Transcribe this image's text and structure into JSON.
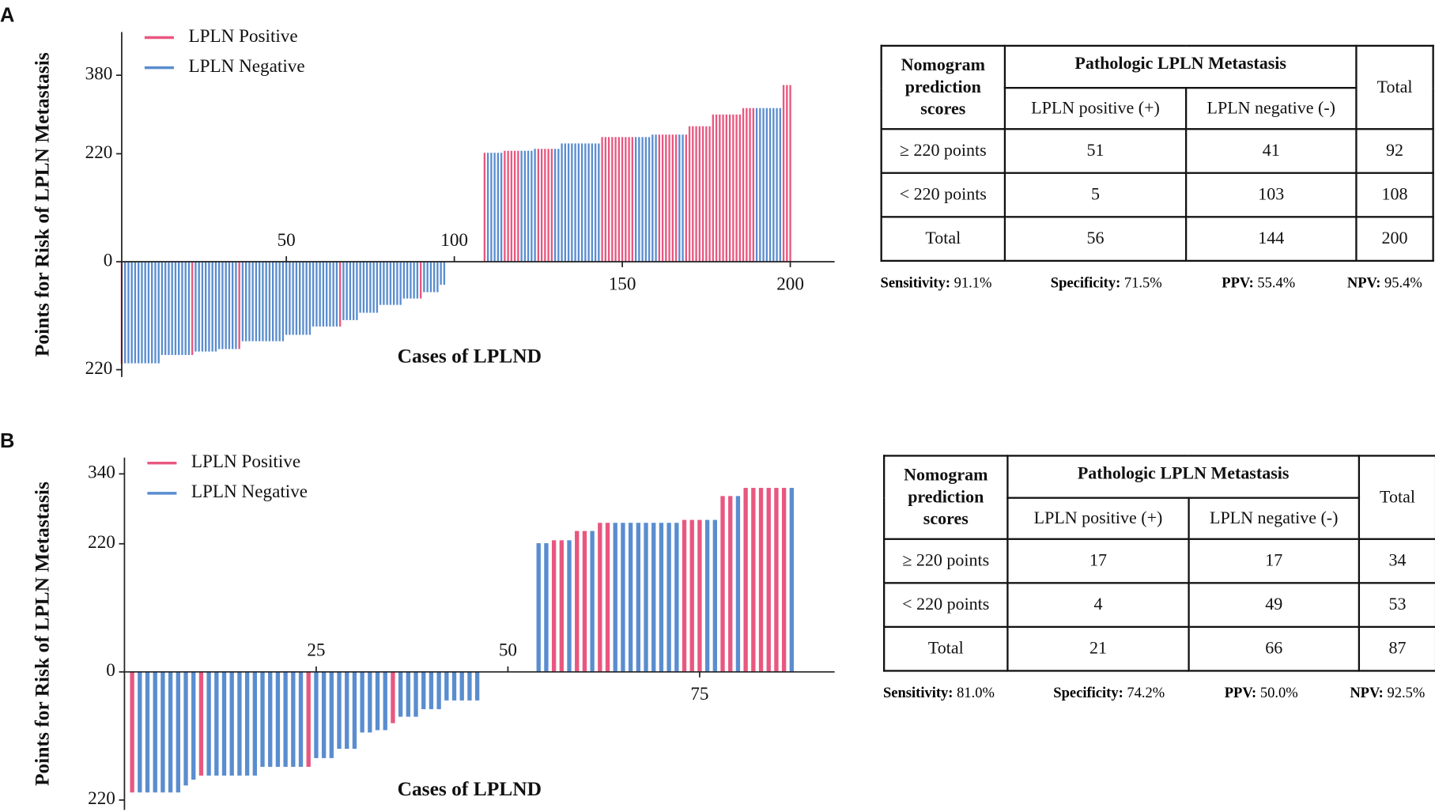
{
  "panel_labels": [
    "A",
    "B"
  ],
  "chart_data": [
    {
      "type": "bar",
      "ylabel": "Points for Risk of LPLN Metastasis",
      "xlabel": "Cases of LPLND",
      "xlim": [
        1,
        213.2
      ],
      "xticks": [
        50,
        100,
        150,
        200
      ],
      "ylim": [
        -235,
        468
      ],
      "yticks": [
        {
          "value": -220,
          "label": "220"
        },
        0,
        220,
        380
      ],
      "series": [
        {
          "name": "LPLN Positive",
          "color": "#e8577f",
          "x": [
            1,
            22,
            36,
            66,
            90,
            109,
            115,
            116,
            117,
            118,
            119,
            125,
            126,
            127,
            128,
            129,
            144,
            145,
            146,
            147,
            148,
            149,
            150,
            151,
            152,
            153,
            161,
            162,
            163,
            164,
            165,
            166,
            169,
            170,
            171,
            172,
            173,
            174,
            175,
            176,
            177,
            178,
            179,
            180,
            181,
            182,
            183,
            184,
            185,
            186,
            187,
            188,
            189,
            198,
            199,
            200
          ],
          "values": [
            -208,
            -190,
            -178,
            -132,
            -75,
            222,
            226,
            226,
            226,
            226,
            226,
            230,
            230,
            230,
            230,
            230,
            254,
            254,
            254,
            254,
            254,
            254,
            254,
            254,
            254,
            254,
            259,
            259,
            259,
            259,
            259,
            259,
            259,
            276,
            276,
            276,
            276,
            276,
            276,
            276,
            300,
            300,
            300,
            300,
            300,
            300,
            300,
            300,
            300,
            313,
            313,
            313,
            313,
            360,
            360,
            360
          ]
        },
        {
          "name": "LPLN Negative",
          "color": "#5a8dcf",
          "x": [
            2,
            3,
            4,
            5,
            6,
            7,
            8,
            9,
            10,
            11,
            12,
            13,
            14,
            15,
            16,
            17,
            18,
            19,
            20,
            21,
            23,
            24,
            25,
            26,
            27,
            28,
            29,
            30,
            31,
            32,
            33,
            34,
            35,
            37,
            38,
            39,
            40,
            41,
            42,
            43,
            44,
            45,
            46,
            47,
            48,
            49,
            50,
            51,
            52,
            53,
            54,
            55,
            56,
            57,
            58,
            59,
            60,
            61,
            62,
            63,
            64,
            65,
            67,
            68,
            69,
            70,
            71,
            72,
            73,
            74,
            75,
            76,
            77,
            78,
            79,
            80,
            81,
            82,
            83,
            84,
            85,
            86,
            87,
            88,
            89,
            91,
            92,
            93,
            94,
            95,
            96,
            97,
            98,
            99,
            100,
            101,
            102,
            103,
            104,
            105,
            106,
            107,
            108,
            110,
            111,
            112,
            113,
            114,
            120,
            121,
            122,
            123,
            124,
            130,
            131,
            132,
            133,
            134,
            135,
            136,
            137,
            138,
            139,
            140,
            141,
            142,
            143,
            154,
            155,
            156,
            157,
            158,
            159,
            160,
            167,
            168,
            190,
            191,
            192,
            193,
            194,
            195,
            196,
            197
          ],
          "values": [
            -207,
            -207,
            -207,
            -207,
            -207,
            -207,
            -207,
            -207,
            -207,
            -207,
            -207,
            -190,
            -190,
            -190,
            -190,
            -190,
            -190,
            -190,
            -190,
            -190,
            -183,
            -183,
            -183,
            -183,
            -183,
            -183,
            -183,
            -178,
            -178,
            -178,
            -178,
            -178,
            -178,
            -162,
            -162,
            -162,
            -162,
            -162,
            -162,
            -162,
            -162,
            -162,
            -162,
            -162,
            -162,
            -162,
            -149,
            -149,
            -149,
            -149,
            -149,
            -149,
            -149,
            -149,
            -132,
            -132,
            -132,
            -132,
            -132,
            -132,
            -132,
            -132,
            -119,
            -119,
            -119,
            -119,
            -119,
            -104,
            -104,
            -104,
            -104,
            -104,
            -104,
            -88,
            -88,
            -88,
            -88,
            -88,
            -88,
            -88,
            -75,
            -75,
            -75,
            -75,
            -75,
            -62,
            -62,
            -62,
            -62,
            -62,
            -47,
            -47,
            0,
            0,
            0,
            0,
            0,
            0,
            0,
            0,
            0,
            0,
            0,
            222,
            222,
            222,
            222,
            222,
            226,
            226,
            226,
            226,
            230,
            230,
            230,
            241,
            241,
            241,
            241,
            241,
            241,
            241,
            241,
            241,
            241,
            241,
            241,
            254,
            254,
            254,
            254,
            254,
            259,
            259,
            259,
            259,
            313,
            313,
            313,
            313,
            313,
            313,
            313,
            313
          ]
        }
      ]
    },
    {
      "type": "bar",
      "ylabel": "Points for Risk of LPLN Metastasis",
      "xlabel": "Cases of LPLND",
      "xlim": [
        0,
        92.6
      ],
      "xticks": [
        25,
        50,
        75
      ],
      "ylim": [
        -237,
        368
      ],
      "yticks": [
        {
          "value": -220,
          "label": "220"
        },
        0,
        220,
        340
      ],
      "series": [
        {
          "name": "LPLN Positive",
          "color": "#e8577f",
          "x": [
            1,
            10,
            24,
            35,
            56,
            57,
            59,
            60,
            62,
            63,
            73,
            74,
            75,
            78,
            79,
            81,
            82,
            83,
            84,
            85,
            86
          ],
          "values": [
            -207,
            -178,
            -163,
            -88,
            226,
            226,
            242,
            242,
            256,
            256,
            261,
            261,
            261,
            302,
            302,
            316,
            316,
            316,
            316,
            316,
            316
          ]
        },
        {
          "name": "LPLN Negative",
          "color": "#5a8dcf",
          "x": [
            2,
            3,
            4,
            5,
            6,
            7,
            8,
            9,
            11,
            12,
            13,
            14,
            15,
            16,
            17,
            18,
            19,
            20,
            21,
            22,
            23,
            25,
            26,
            27,
            28,
            29,
            30,
            31,
            32,
            33,
            34,
            36,
            37,
            38,
            39,
            40,
            41,
            42,
            43,
            44,
            45,
            46,
            47,
            48,
            49,
            50,
            51,
            52,
            53,
            54,
            55,
            58,
            61,
            64,
            65,
            66,
            67,
            68,
            69,
            70,
            71,
            72,
            76,
            77,
            80,
            87
          ],
          "values": [
            -207,
            -207,
            -207,
            -207,
            -207,
            -207,
            -195,
            -185,
            -178,
            -178,
            -178,
            -178,
            -178,
            -178,
            -178,
            -163,
            -163,
            -163,
            -163,
            -163,
            -163,
            -148,
            -148,
            -148,
            -132,
            -132,
            -132,
            -104,
            -104,
            -100,
            -100,
            -77,
            -77,
            -77,
            -64,
            -64,
            -64,
            -49,
            -49,
            -49,
            -49,
            -49,
            0,
            0,
            0,
            0,
            0,
            0,
            0,
            221,
            221,
            226,
            242,
            256,
            256,
            256,
            256,
            256,
            256,
            256,
            256,
            256,
            261,
            261,
            302,
            316
          ]
        }
      ]
    }
  ],
  "tables": [
    {
      "corner": "Nomogram prediction scores",
      "group": "Pathologic LPLN Metastasis",
      "columns": [
        "LPLN positive (+)",
        "LPLN negative (-)"
      ],
      "total": "Total",
      "rows": [
        [
          "≥ 220 points",
          51,
          41,
          92
        ],
        [
          "< 220 points",
          5,
          103,
          108
        ],
        [
          "Total",
          56,
          144,
          200
        ]
      ],
      "stats": [
        {
          "label": "Sensitivity:",
          "value": "91.1%"
        },
        {
          "label": "Specificity:",
          "value": "71.5%"
        },
        {
          "label": "PPV:",
          "value": "55.4%"
        },
        {
          "label": "NPV:",
          "value": "95.4%"
        }
      ]
    },
    {
      "corner": "Nomogram prediction scores",
      "group": "Pathologic LPLN Metastasis",
      "columns": [
        "LPLN positive (+)",
        "LPLN negative (-)"
      ],
      "total": "Total",
      "rows": [
        [
          "≥ 220 points",
          17,
          17,
          34
        ],
        [
          "< 220 points",
          4,
          49,
          53
        ],
        [
          "Total",
          21,
          66,
          87
        ]
      ],
      "stats": [
        {
          "label": "Sensitivity:",
          "value": "81.0%"
        },
        {
          "label": "Specificity:",
          "value": "74.2%"
        },
        {
          "label": "PPV:",
          "value": "50.0%"
        },
        {
          "label": "NPV:",
          "value": "92.5%"
        }
      ]
    }
  ]
}
